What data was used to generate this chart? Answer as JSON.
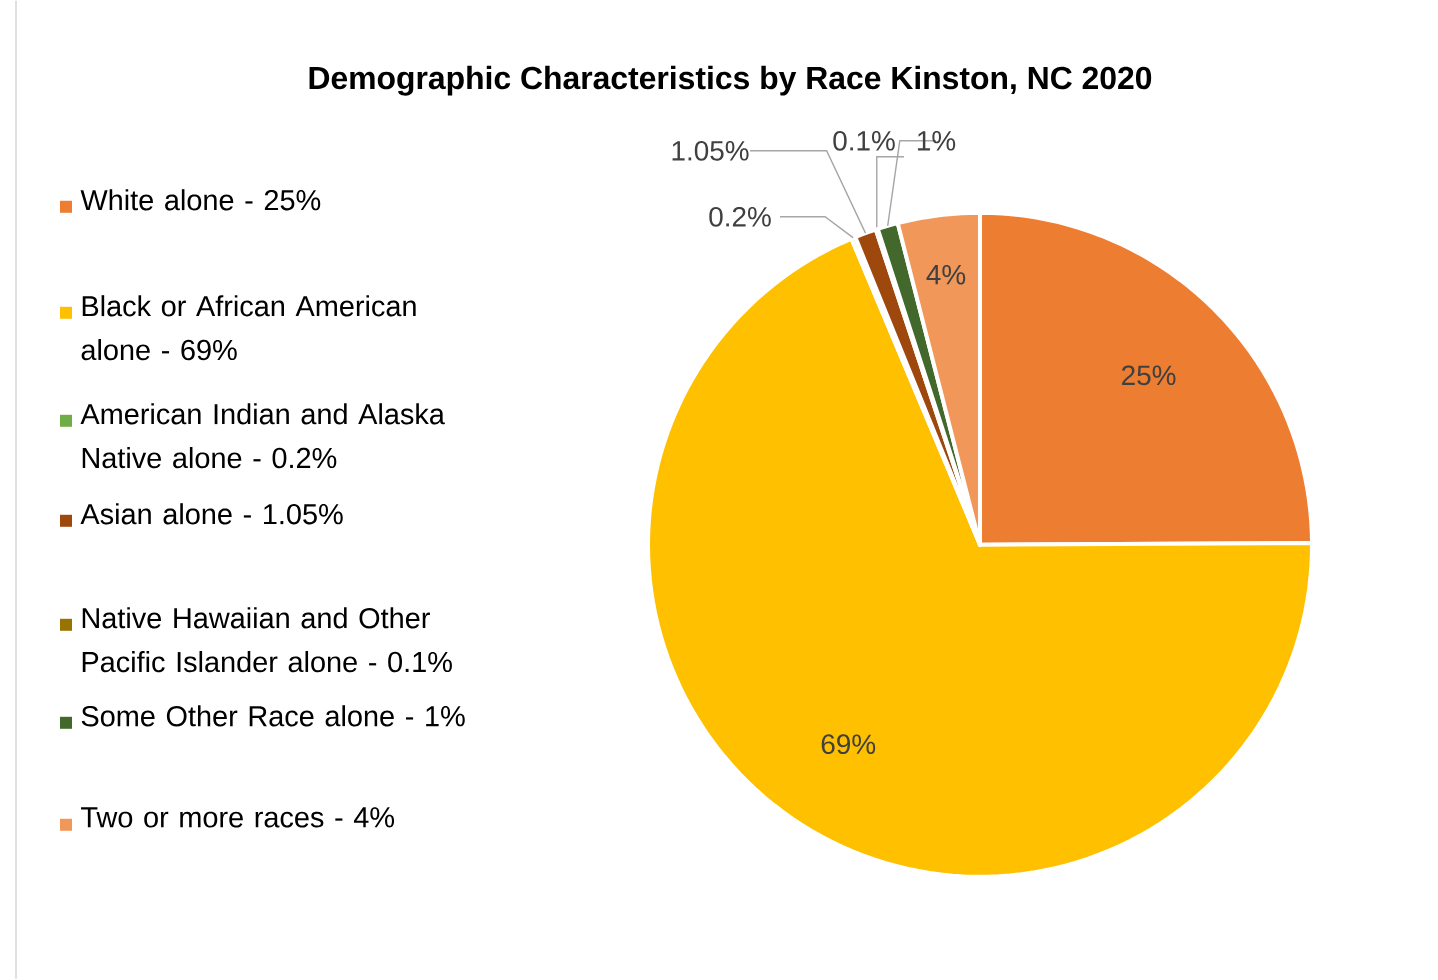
{
  "chart_data": {
    "type": "pie",
    "title": "Demographic Characteristics by Race Kinston, NC 2020",
    "categories": [
      "White alone - 25%",
      "Black or African American alone - 69%",
      "American Indian and Alaska Native alone - 0.2%",
      "Asian alone - 1.05%",
      "Native Hawaiian and Other Pacific Islander alone - 0.1%",
      "Some Other Race alone - 1%",
      "Two or more races - 4%"
    ],
    "values": [
      25,
      69,
      0.2,
      1.05,
      0.1,
      1,
      4
    ],
    "colors": [
      "#ed7d31",
      "#ffc000",
      "#70ad47",
      "#9e480e",
      "#997300",
      "#43682b",
      "#f1975a"
    ],
    "value_labels": [
      "25%",
      "69%",
      "0.2%",
      "1.05%",
      "0.1%",
      "1%",
      "4%"
    ],
    "legend": "left"
  }
}
